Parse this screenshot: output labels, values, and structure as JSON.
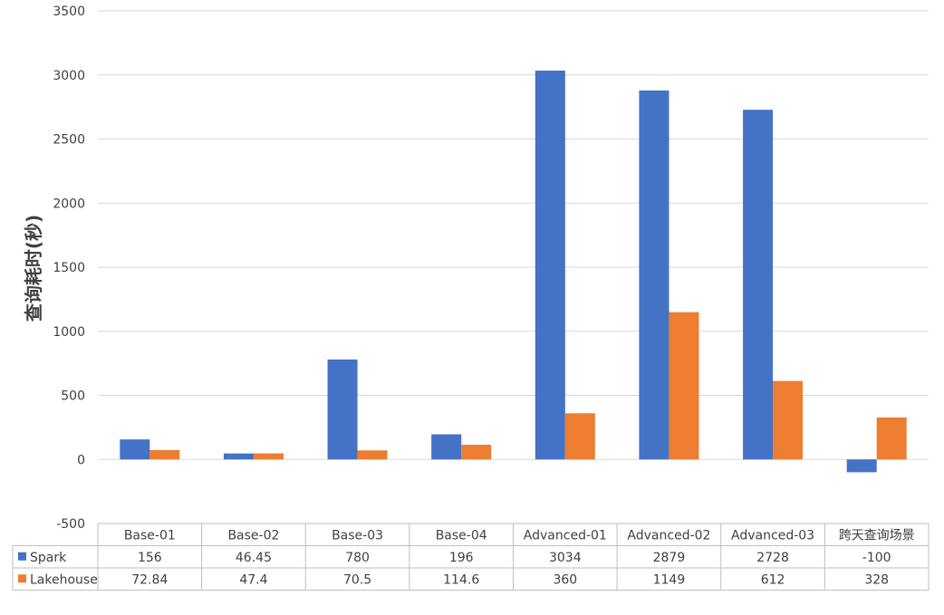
{
  "chart_data": {
    "type": "bar",
    "title": "",
    "xlabel": "",
    "ylabel": "查询耗时(秒)",
    "ylim": [
      -500,
      3500
    ],
    "yticks": [
      3500,
      3000,
      2500,
      2000,
      1500,
      1000,
      500,
      0,
      -500
    ],
    "grid": true,
    "legend_placement": "data-table",
    "categories": [
      "Base-01",
      "Base-02",
      "Base-03",
      "Base-04",
      "Advanced-01",
      "Advanced-02",
      "Advanced-03",
      "跨天查询场景"
    ],
    "series": [
      {
        "name": "Spark",
        "color": "#4472C4",
        "values": [
          156,
          46.45,
          780,
          196,
          3034,
          2879,
          2728,
          -100
        ],
        "labels": [
          "156",
          "46.45",
          "780",
          "196",
          "3034",
          "2879",
          "2728",
          "-100"
        ]
      },
      {
        "name": "Lakehouse",
        "color": "#ED7D31",
        "values": [
          72.84,
          47.4,
          70.5,
          114.6,
          360,
          1149,
          612,
          328
        ],
        "labels": [
          "72.84",
          "47.4",
          "70.5",
          "114.6",
          "360",
          "1149",
          "612",
          "328"
        ]
      }
    ]
  }
}
